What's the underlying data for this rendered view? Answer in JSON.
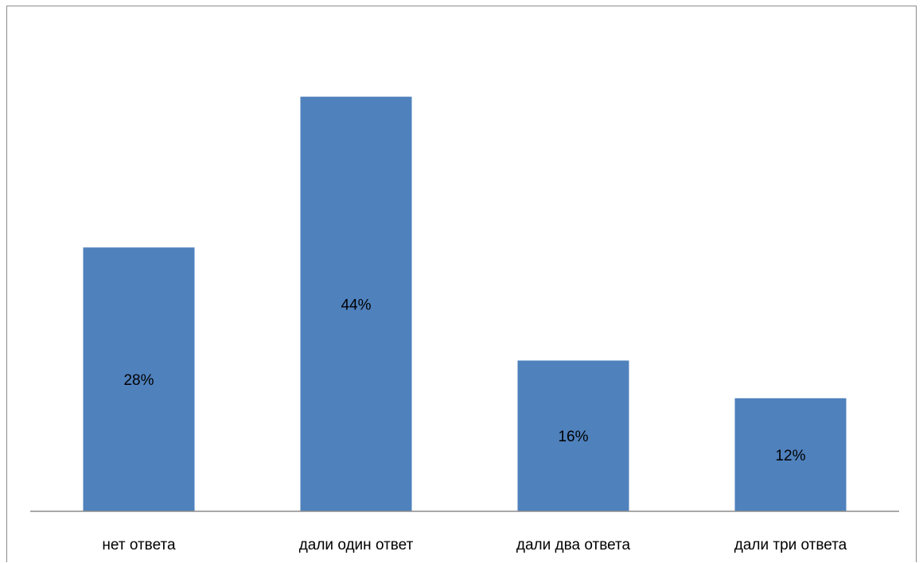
{
  "chart_data": {
    "type": "bar",
    "categories": [
      "нет ответа",
      "дали один ответ",
      "дали два ответа",
      "дали три ответа"
    ],
    "values": [
      28,
      44,
      16,
      12
    ],
    "data_labels": [
      "28%",
      "44%",
      "16%",
      "12%"
    ],
    "title": "",
    "xlabel": "",
    "ylabel": "",
    "ylim": [
      0,
      50
    ],
    "grid": false,
    "legend": "none",
    "bar_color": "#4F81BD",
    "axis_color": "#8c8c8c"
  }
}
